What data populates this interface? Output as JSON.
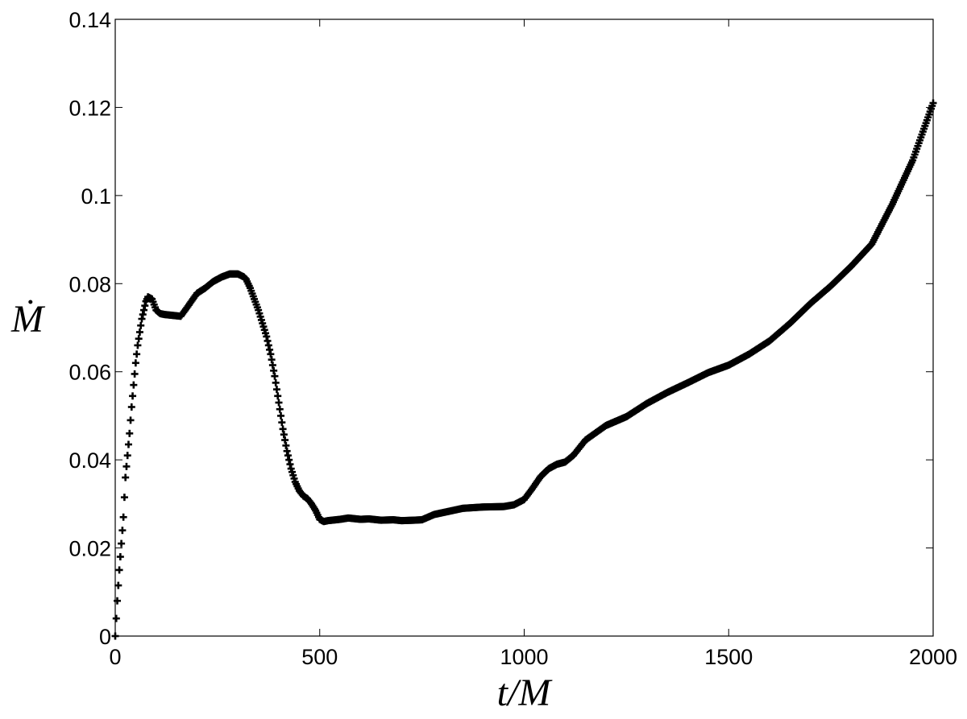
{
  "chart_data": {
    "type": "scatter",
    "xlabel": "t/M",
    "ylabel": "Ṁ",
    "xlim": [
      0,
      2000
    ],
    "ylim": [
      0,
      0.14
    ],
    "xticks": [
      "0",
      "500",
      "1000",
      "1500",
      "2000"
    ],
    "yticks": [
      "0",
      "0.02",
      "0.04",
      "0.06",
      "0.08",
      "0.1",
      "0.12",
      "0.14"
    ],
    "grid": false,
    "marker": "plus",
    "marker_color": "#000000",
    "series": [
      {
        "x": [
          0,
          5,
          10,
          15,
          20,
          25,
          30,
          35,
          40,
          45,
          50,
          55,
          60,
          65,
          70,
          75,
          80,
          90,
          100,
          110,
          120,
          140,
          160,
          175,
          190,
          200,
          220,
          240,
          260,
          280,
          300,
          315,
          320,
          330,
          340,
          350,
          360,
          370,
          380,
          390,
          400,
          410,
          420,
          430,
          440,
          450,
          460,
          470,
          480,
          490,
          500,
          510,
          520,
          550,
          570,
          600,
          620,
          650,
          680,
          700,
          730,
          750,
          780,
          800,
          850,
          900,
          950,
          975,
          1000,
          1020,
          1040,
          1060,
          1080,
          1100,
          1120,
          1150,
          1200,
          1250,
          1300,
          1350,
          1400,
          1450,
          1500,
          1550,
          1600,
          1650,
          1700,
          1750,
          1800,
          1850,
          1900,
          1950,
          2000
        ],
        "y": [
          0.0,
          0.008,
          0.015,
          0.021,
          0.027,
          0.036,
          0.041,
          0.046,
          0.052,
          0.057,
          0.062,
          0.066,
          0.069,
          0.072,
          0.074,
          0.076,
          0.077,
          0.0765,
          0.074,
          0.0732,
          0.073,
          0.0728,
          0.0726,
          0.0745,
          0.0765,
          0.0778,
          0.079,
          0.0805,
          0.0815,
          0.0822,
          0.0822,
          0.0815,
          0.081,
          0.079,
          0.0765,
          0.074,
          0.071,
          0.068,
          0.064,
          0.059,
          0.053,
          0.047,
          0.042,
          0.038,
          0.035,
          0.033,
          0.0318,
          0.0312,
          0.03,
          0.0285,
          0.0265,
          0.026,
          0.0262,
          0.0265,
          0.0268,
          0.0265,
          0.0266,
          0.0263,
          0.0264,
          0.0262,
          0.0263,
          0.0264,
          0.0276,
          0.028,
          0.029,
          0.0293,
          0.0294,
          0.0298,
          0.031,
          0.0335,
          0.0362,
          0.038,
          0.039,
          0.0395,
          0.041,
          0.0445,
          0.0478,
          0.0498,
          0.0528,
          0.0553,
          0.0575,
          0.0598,
          0.0615,
          0.064,
          0.067,
          0.071,
          0.0755,
          0.0795,
          0.084,
          0.089,
          0.098,
          0.108,
          0.121
        ]
      }
    ]
  }
}
